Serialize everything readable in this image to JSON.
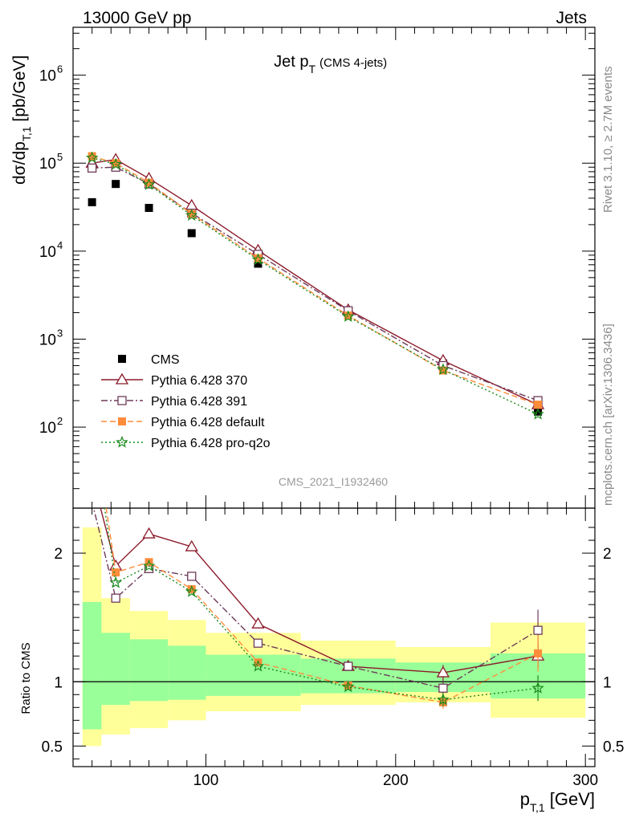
{
  "header": {
    "left": "13000 GeV pp",
    "right": "Jets"
  },
  "side_labels": {
    "rivet": "Rivet 3.1.10, ≥ 2.7M events",
    "mcplots": "mcplots.cern.ch [arXiv:1306.3436]"
  },
  "watermark": "CMS_2021_I1932460",
  "ylabel_main": "dσ/dp_{T,1} [pb/GeV]",
  "ylabel_ratio": "Ratio to CMS",
  "xlabel": "p_{T,1} [GeV]",
  "chart_data": {
    "type": "line",
    "title": "Jet p_T",
    "subtitle": "(CMS 4-jets)",
    "xlim": [
      30,
      305
    ],
    "x_ticks": [
      100,
      200,
      300
    ],
    "main": {
      "yscale": "log",
      "ylim": [
        12,
        3500000
      ],
      "y_ticks": [
        {
          "value": 100,
          "label": "10^2"
        },
        {
          "value": 1000,
          "label": "10^3"
        },
        {
          "value": 10000,
          "label": "10^4"
        },
        {
          "value": 100000,
          "label": "10^5"
        },
        {
          "value": 1000000,
          "label": "10^6"
        }
      ]
    },
    "ratio": {
      "ylim": [
        0.34,
        2.35
      ],
      "y_ticks": [
        0.5,
        1,
        2
      ],
      "reference_line": 1
    },
    "bins": {
      "edges": [
        35,
        45,
        60,
        80,
        100,
        150,
        200,
        250,
        300
      ],
      "band_outer_lo": [
        0.5,
        0.59,
        0.64,
        0.7,
        0.77,
        0.82,
        0.84,
        0.72
      ],
      "band_outer_hi": [
        2.2,
        1.65,
        1.55,
        1.48,
        1.38,
        1.32,
        1.27,
        1.46
      ],
      "band_inner_lo": [
        0.63,
        0.82,
        0.85,
        0.86,
        0.89,
        0.91,
        0.92,
        0.87
      ],
      "band_inner_hi": [
        1.62,
        1.38,
        1.33,
        1.28,
        1.21,
        1.18,
        1.15,
        1.22
      ]
    },
    "legend": {
      "placement": "bottom-left"
    },
    "series": [
      {
        "name": "CMS",
        "style": "data",
        "color": "#000000",
        "marker": "square-filled",
        "x": [
          40,
          52.5,
          70,
          92.5,
          127.5,
          175,
          225,
          275
        ],
        "y": [
          36000,
          58000,
          31000,
          16000,
          7200,
          2000,
          530,
          150
        ]
      },
      {
        "name": "Pythia 6.428 370",
        "style": "solid",
        "color": "#8b1a2b",
        "marker": "triangle-open",
        "x": [
          40,
          52.5,
          70,
          92.5,
          127.5,
          175,
          225,
          275
        ],
        "y": [
          100000,
          110000,
          67000,
          33000,
          10200,
          2150,
          570,
          180
        ],
        "ratio": [
          2.6,
          1.9,
          2.15,
          2.05,
          1.45,
          1.12,
          1.07,
          1.2
        ],
        "ratio_err": [
          0,
          0,
          0,
          0,
          0,
          0.03,
          0.06,
          0.09
        ]
      },
      {
        "name": "Pythia 6.428 391",
        "style": "dashdot",
        "color": "#6e3a58",
        "marker": "square-open",
        "x": [
          40,
          52.5,
          70,
          92.5,
          127.5,
          175,
          225,
          275
        ],
        "y": [
          88000,
          90000,
          58000,
          27000,
          9200,
          2100,
          500,
          200
        ],
        "ratio": [
          2.4,
          1.65,
          1.88,
          1.82,
          1.3,
          1.12,
          0.95,
          1.4
        ],
        "ratio_err": [
          0,
          0,
          0,
          0,
          0,
          0.03,
          0.06,
          0.16
        ]
      },
      {
        "name": "Pythia 6.428 default",
        "style": "dashed",
        "color": "#ff8c3a",
        "marker": "square-filled",
        "x": [
          40,
          52.5,
          70,
          92.5,
          127.5,
          175,
          225,
          275
        ],
        "y": [
          120000,
          100000,
          60000,
          26500,
          8300,
          1850,
          440,
          180
        ],
        "ratio": [
          3.1,
          1.85,
          1.93,
          1.72,
          1.15,
          0.97,
          0.84,
          1.22
        ],
        "ratio_err": [
          0,
          0,
          0,
          0,
          0,
          0.02,
          0.05,
          0.14
        ]
      },
      {
        "name": "Pythia 6.428 pro-q2o",
        "style": "dotted",
        "color": "#1a8a1a",
        "marker": "star",
        "x": [
          40,
          52.5,
          70,
          92.5,
          127.5,
          175,
          225,
          275
        ],
        "y": [
          115000,
          97000,
          57000,
          25500,
          8000,
          1800,
          450,
          140
        ],
        "ratio": [
          3.0,
          1.77,
          1.9,
          1.7,
          1.12,
          0.96,
          0.86,
          0.95
        ],
        "ratio_err": [
          0,
          0,
          0,
          0,
          0,
          0.02,
          0.05,
          0.1
        ]
      }
    ]
  }
}
